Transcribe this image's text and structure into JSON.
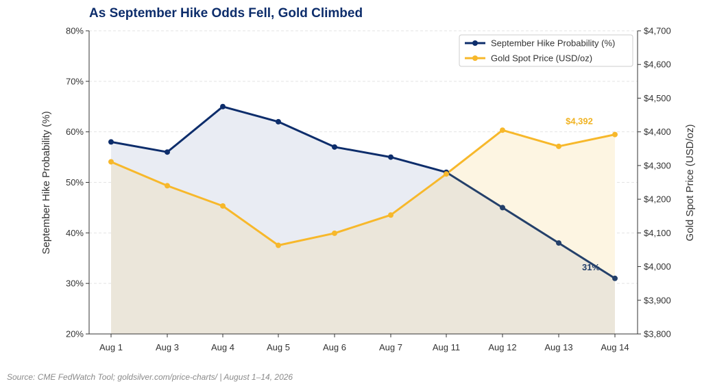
{
  "chart_data": {
    "type": "line",
    "title": "As September Hike Odds Fell, Gold Climbed",
    "source": "Source: CME FedWatch Tool; goldsilver.com/price-charts/ | August 1–14, 2026",
    "categories": [
      "Aug 1",
      "Aug 3",
      "Aug 4",
      "Aug 5",
      "Aug 6",
      "Aug 7",
      "Aug 11",
      "Aug 12",
      "Aug 13",
      "Aug 14"
    ],
    "ylabel_left": "September Hike Probability (%)",
    "ylabel_right": "Gold Spot Price (USD/oz)",
    "ylim_left": [
      20,
      80
    ],
    "ylim_right": [
      3800,
      4700
    ],
    "yticks_left": [
      "20%",
      "30%",
      "40%",
      "50%",
      "60%",
      "70%",
      "80%"
    ],
    "yticks_left_values": [
      20,
      30,
      40,
      50,
      60,
      70,
      80
    ],
    "yticks_right": [
      "$3,800",
      "$3,900",
      "$4,000",
      "$4,100",
      "$4,200",
      "$4,300",
      "$4,400",
      "$4,500",
      "$4,600",
      "$4,700"
    ],
    "yticks_right_values": [
      3800,
      3900,
      4000,
      4100,
      4200,
      4300,
      4400,
      4500,
      4600,
      4700
    ],
    "grid": true,
    "legend_position": "top-right",
    "series": [
      {
        "name": "September Hike Probability (%)",
        "axis": "left",
        "color": "#0d2d6b",
        "values": [
          58,
          56,
          65,
          62,
          57,
          55,
          52,
          45,
          38,
          31
        ]
      },
      {
        "name": "Gold Spot Price (USD/oz)",
        "axis": "right",
        "color": "#f7b82b",
        "values": [
          4311,
          4240,
          4180,
          4063,
          4099,
          4153,
          4275,
          4405,
          4357,
          4392
        ]
      }
    ],
    "annotations": [
      {
        "text": "31%",
        "series": 0,
        "index": 9,
        "color": "#24406a"
      },
      {
        "text": "$4,392",
        "series": 1,
        "index": 9,
        "color": "#f0b323"
      }
    ],
    "colors": {
      "title": "#0d2d6b",
      "hike_fill": "#e9ecf3",
      "gold_fill": "#fdf5e2",
      "overlap_fill": "#ebe6da",
      "hike_line_late": "#24406a"
    }
  }
}
